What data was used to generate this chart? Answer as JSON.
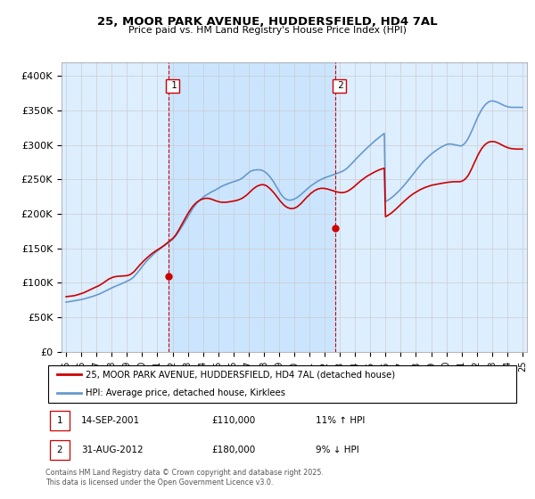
{
  "title": "25, MOOR PARK AVENUE, HUDDERSFIELD, HD4 7AL",
  "subtitle": "Price paid vs. HM Land Registry's House Price Index (HPI)",
  "ylim": [
    0,
    420000
  ],
  "yticks": [
    0,
    50000,
    100000,
    150000,
    200000,
    250000,
    300000,
    350000,
    400000
  ],
  "ytick_labels": [
    "£0",
    "£50K",
    "£100K",
    "£150K",
    "£200K",
    "£250K",
    "£300K",
    "£350K",
    "£400K"
  ],
  "annotation1": {
    "label": "1",
    "date": "14-SEP-2001",
    "price": "£110,000",
    "hpi": "11% ↑ HPI",
    "x_year": 2001.71
  },
  "annotation2": {
    "label": "2",
    "date": "31-AUG-2012",
    "price": "£180,000",
    "hpi": "9% ↓ HPI",
    "x_year": 2012.67
  },
  "legend_line1": "25, MOOR PARK AVENUE, HUDDERSFIELD, HD4 7AL (detached house)",
  "legend_line2": "HPI: Average price, detached house, Kirklees",
  "footer": "Contains HM Land Registry data © Crown copyright and database right 2025.\nThis data is licensed under the Open Government Licence v3.0.",
  "red_color": "#cc0000",
  "blue_color": "#6699cc",
  "background_color": "#ddeeff",
  "dot1_y": 110000,
  "dot2_y": 180000,
  "hpi_years": [
    1995.0,
    1995.08,
    1995.17,
    1995.25,
    1995.33,
    1995.42,
    1995.5,
    1995.58,
    1995.67,
    1995.75,
    1995.83,
    1995.92,
    1996.0,
    1996.08,
    1996.17,
    1996.25,
    1996.33,
    1996.42,
    1996.5,
    1996.58,
    1996.67,
    1996.75,
    1996.83,
    1996.92,
    1997.0,
    1997.08,
    1997.17,
    1997.25,
    1997.33,
    1997.42,
    1997.5,
    1997.58,
    1997.67,
    1997.75,
    1997.83,
    1997.92,
    1998.0,
    1998.08,
    1998.17,
    1998.25,
    1998.33,
    1998.42,
    1998.5,
    1998.58,
    1998.67,
    1998.75,
    1998.83,
    1998.92,
    1999.0,
    1999.08,
    1999.17,
    1999.25,
    1999.33,
    1999.42,
    1999.5,
    1999.58,
    1999.67,
    1999.75,
    1999.83,
    1999.92,
    2000.0,
    2000.08,
    2000.17,
    2000.25,
    2000.33,
    2000.42,
    2000.5,
    2000.58,
    2000.67,
    2000.75,
    2000.83,
    2000.92,
    2001.0,
    2001.08,
    2001.17,
    2001.25,
    2001.33,
    2001.42,
    2001.5,
    2001.58,
    2001.67,
    2001.75,
    2001.83,
    2001.92,
    2002.0,
    2002.08,
    2002.17,
    2002.25,
    2002.33,
    2002.42,
    2002.5,
    2002.58,
    2002.67,
    2002.75,
    2002.83,
    2002.92,
    2003.0,
    2003.08,
    2003.17,
    2003.25,
    2003.33,
    2003.42,
    2003.5,
    2003.58,
    2003.67,
    2003.75,
    2003.83,
    2003.92,
    2004.0,
    2004.08,
    2004.17,
    2004.25,
    2004.33,
    2004.42,
    2004.5,
    2004.58,
    2004.67,
    2004.75,
    2004.83,
    2004.92,
    2005.0,
    2005.08,
    2005.17,
    2005.25,
    2005.33,
    2005.42,
    2005.5,
    2005.58,
    2005.67,
    2005.75,
    2005.83,
    2005.92,
    2006.0,
    2006.08,
    2006.17,
    2006.25,
    2006.33,
    2006.42,
    2006.5,
    2006.58,
    2006.67,
    2006.75,
    2006.83,
    2006.92,
    2007.0,
    2007.08,
    2007.17,
    2007.25,
    2007.33,
    2007.42,
    2007.5,
    2007.58,
    2007.67,
    2007.75,
    2007.83,
    2007.92,
    2008.0,
    2008.08,
    2008.17,
    2008.25,
    2008.33,
    2008.42,
    2008.5,
    2008.58,
    2008.67,
    2008.75,
    2008.83,
    2008.92,
    2009.0,
    2009.08,
    2009.17,
    2009.25,
    2009.33,
    2009.42,
    2009.5,
    2009.58,
    2009.67,
    2009.75,
    2009.83,
    2009.92,
    2010.0,
    2010.08,
    2010.17,
    2010.25,
    2010.33,
    2010.42,
    2010.5,
    2010.58,
    2010.67,
    2010.75,
    2010.83,
    2010.92,
    2011.0,
    2011.08,
    2011.17,
    2011.25,
    2011.33,
    2011.42,
    2011.5,
    2011.58,
    2011.67,
    2011.75,
    2011.83,
    2011.92,
    2012.0,
    2012.08,
    2012.17,
    2012.25,
    2012.33,
    2012.42,
    2012.5,
    2012.58,
    2012.67,
    2012.75,
    2012.83,
    2012.92,
    2013.0,
    2013.08,
    2013.17,
    2013.25,
    2013.33,
    2013.42,
    2013.5,
    2013.58,
    2013.67,
    2013.75,
    2013.83,
    2013.92,
    2014.0,
    2014.08,
    2014.17,
    2014.25,
    2014.33,
    2014.42,
    2014.5,
    2014.58,
    2014.67,
    2014.75,
    2014.83,
    2014.92,
    2015.0,
    2015.08,
    2015.17,
    2015.25,
    2015.33,
    2015.42,
    2015.5,
    2015.58,
    2015.67,
    2015.75,
    2015.83,
    2015.92,
    2016.0,
    2016.08,
    2016.17,
    2016.25,
    2016.33,
    2016.42,
    2016.5,
    2016.58,
    2016.67,
    2016.75,
    2016.83,
    2016.92,
    2017.0,
    2017.08,
    2017.17,
    2017.25,
    2017.33,
    2017.42,
    2017.5,
    2017.58,
    2017.67,
    2017.75,
    2017.83,
    2017.92,
    2018.0,
    2018.08,
    2018.17,
    2018.25,
    2018.33,
    2018.42,
    2018.5,
    2018.58,
    2018.67,
    2018.75,
    2018.83,
    2018.92,
    2019.0,
    2019.08,
    2019.17,
    2019.25,
    2019.33,
    2019.42,
    2019.5,
    2019.58,
    2019.67,
    2019.75,
    2019.83,
    2019.92,
    2020.0,
    2020.08,
    2020.17,
    2020.25,
    2020.33,
    2020.42,
    2020.5,
    2020.58,
    2020.67,
    2020.75,
    2020.83,
    2020.92,
    2021.0,
    2021.08,
    2021.17,
    2021.25,
    2021.33,
    2021.42,
    2021.5,
    2021.58,
    2021.67,
    2021.75,
    2021.83,
    2021.92,
    2022.0,
    2022.08,
    2022.17,
    2022.25,
    2022.33,
    2022.42,
    2022.5,
    2022.58,
    2022.67,
    2022.75,
    2022.83,
    2022.92,
    2023.0,
    2023.08,
    2023.17,
    2023.25,
    2023.33,
    2023.42,
    2023.5,
    2023.58,
    2023.67,
    2023.75,
    2023.83,
    2023.92,
    2024.0,
    2024.08,
    2024.17,
    2024.25,
    2024.33,
    2024.42,
    2024.5,
    2024.58,
    2024.67,
    2024.75,
    2024.83,
    2024.92,
    2025.0
  ],
  "hpi_values": [
    72000,
    72300,
    72600,
    72900,
    73200,
    73500,
    73800,
    74100,
    74400,
    74700,
    75000,
    75400,
    75800,
    76200,
    76700,
    77200,
    77700,
    78200,
    78800,
    79300,
    79900,
    80400,
    81000,
    81600,
    82200,
    82900,
    83700,
    84500,
    85400,
    86300,
    87200,
    88100,
    89100,
    90000,
    90900,
    91800,
    92700,
    93500,
    94300,
    95100,
    95900,
    96700,
    97400,
    98200,
    99000,
    99800,
    100600,
    101400,
    102300,
    103200,
    104200,
    105200,
    106500,
    108000,
    110000,
    112000,
    114200,
    116500,
    118800,
    121200,
    123600,
    125900,
    128200,
    130500,
    132500,
    134500,
    136400,
    138200,
    140000,
    141700,
    143300,
    144900,
    146400,
    147900,
    149300,
    150700,
    152000,
    153300,
    154600,
    155900,
    157200,
    158600,
    160100,
    161700,
    163300,
    165100,
    167100,
    169500,
    172000,
    174800,
    177700,
    180500,
    183500,
    186500,
    189500,
    192600,
    195800,
    198900,
    202000,
    205000,
    208000,
    210700,
    213200,
    215400,
    217400,
    219200,
    220900,
    222500,
    224100,
    225700,
    226900,
    228100,
    229200,
    230300,
    231300,
    232300,
    233200,
    234000,
    235000,
    236100,
    237200,
    238300,
    239400,
    240400,
    241200,
    242000,
    242700,
    243400,
    244100,
    244800,
    245500,
    246100,
    246700,
    247300,
    247900,
    248500,
    249200,
    250000,
    251000,
    252200,
    253600,
    255200,
    256800,
    258400,
    260000,
    261300,
    262300,
    263000,
    263500,
    263800,
    264000,
    264100,
    264200,
    263900,
    263600,
    263000,
    262200,
    260900,
    259400,
    257700,
    255700,
    253500,
    251100,
    248500,
    245700,
    242700,
    239600,
    236400,
    233200,
    230200,
    227500,
    225200,
    223400,
    222000,
    221000,
    220400,
    220100,
    220100,
    220400,
    220900,
    221600,
    222500,
    223600,
    224900,
    226300,
    227800,
    229400,
    231100,
    232800,
    234500,
    236100,
    237700,
    239200,
    240600,
    242000,
    243300,
    244600,
    245800,
    246900,
    248000,
    249000,
    249900,
    250800,
    251600,
    252400,
    253200,
    253900,
    254600,
    255200,
    255700,
    256300,
    256900,
    257600,
    258300,
    259000,
    259700,
    260400,
    261200,
    262000,
    263000,
    264200,
    265500,
    267000,
    268700,
    270500,
    272400,
    274400,
    276400,
    278400,
    280400,
    282300,
    284200,
    286000,
    287800,
    289600,
    291400,
    293200,
    294900,
    296700,
    298400,
    300100,
    301800,
    303400,
    305100,
    306700,
    308300,
    309800,
    311300,
    312700,
    314100,
    315500,
    316800,
    218000,
    219000,
    220100,
    221300,
    222600,
    224000,
    225500,
    227100,
    228800,
    230500,
    232300,
    234100,
    236000,
    238000,
    240100,
    242300,
    244500,
    246700,
    249000,
    251300,
    253600,
    255900,
    258300,
    260600,
    263000,
    265300,
    267600,
    269900,
    272100,
    274200,
    276200,
    278200,
    280100,
    281900,
    283600,
    285200,
    286700,
    288200,
    289600,
    291000,
    292300,
    293600,
    294800,
    296000,
    297100,
    298100,
    299100,
    300000,
    300700,
    301200,
    301500,
    301600,
    301400,
    301100,
    300700,
    300300,
    299800,
    299400,
    299000,
    298700,
    299000,
    300000,
    301500,
    303500,
    306000,
    309000,
    312500,
    316300,
    320400,
    324600,
    328900,
    333200,
    337400,
    341400,
    345200,
    348700,
    351800,
    354600,
    357000,
    359100,
    360800,
    362200,
    363200,
    363800,
    364000,
    363900,
    363500,
    363000,
    362300,
    361500,
    360600,
    359700,
    358800,
    357900,
    357100,
    356400,
    355800,
    355300,
    355000,
    354800,
    354700,
    354700,
    354700,
    354700,
    354700,
    354700,
    354700,
    354700,
    354700
  ],
  "red_years": [
    1995.0,
    1995.08,
    1995.17,
    1995.25,
    1995.33,
    1995.42,
    1995.5,
    1995.58,
    1995.67,
    1995.75,
    1995.83,
    1995.92,
    1996.0,
    1996.08,
    1996.17,
    1996.25,
    1996.33,
    1996.42,
    1996.5,
    1996.58,
    1996.67,
    1996.75,
    1996.83,
    1996.92,
    1997.0,
    1997.08,
    1997.17,
    1997.25,
    1997.33,
    1997.42,
    1997.5,
    1997.58,
    1997.67,
    1997.75,
    1997.83,
    1997.92,
    1998.0,
    1998.08,
    1998.17,
    1998.25,
    1998.33,
    1998.42,
    1998.5,
    1998.58,
    1998.67,
    1998.75,
    1998.83,
    1998.92,
    1999.0,
    1999.08,
    1999.17,
    1999.25,
    1999.33,
    1999.42,
    1999.5,
    1999.58,
    1999.67,
    1999.75,
    1999.83,
    1999.92,
    2000.0,
    2000.08,
    2000.17,
    2000.25,
    2000.33,
    2000.42,
    2000.5,
    2000.58,
    2000.67,
    2000.75,
    2000.83,
    2000.92,
    2001.0,
    2001.08,
    2001.17,
    2001.25,
    2001.33,
    2001.42,
    2001.5,
    2001.58,
    2001.67,
    2001.75,
    2001.83,
    2001.92,
    2002.0,
    2002.08,
    2002.17,
    2002.25,
    2002.33,
    2002.42,
    2002.5,
    2002.58,
    2002.67,
    2002.75,
    2002.83,
    2002.92,
    2003.0,
    2003.08,
    2003.17,
    2003.25,
    2003.33,
    2003.42,
    2003.5,
    2003.58,
    2003.67,
    2003.75,
    2003.83,
    2003.92,
    2004.0,
    2004.08,
    2004.17,
    2004.25,
    2004.33,
    2004.42,
    2004.5,
    2004.58,
    2004.67,
    2004.75,
    2004.83,
    2004.92,
    2005.0,
    2005.08,
    2005.17,
    2005.25,
    2005.33,
    2005.42,
    2005.5,
    2005.58,
    2005.67,
    2005.75,
    2005.83,
    2005.92,
    2006.0,
    2006.08,
    2006.17,
    2006.25,
    2006.33,
    2006.42,
    2006.5,
    2006.58,
    2006.67,
    2006.75,
    2006.83,
    2006.92,
    2007.0,
    2007.08,
    2007.17,
    2007.25,
    2007.33,
    2007.42,
    2007.5,
    2007.58,
    2007.67,
    2007.75,
    2007.83,
    2007.92,
    2008.0,
    2008.08,
    2008.17,
    2008.25,
    2008.33,
    2008.42,
    2008.5,
    2008.58,
    2008.67,
    2008.75,
    2008.83,
    2008.92,
    2009.0,
    2009.08,
    2009.17,
    2009.25,
    2009.33,
    2009.42,
    2009.5,
    2009.58,
    2009.67,
    2009.75,
    2009.83,
    2009.92,
    2010.0,
    2010.08,
    2010.17,
    2010.25,
    2010.33,
    2010.42,
    2010.5,
    2010.58,
    2010.67,
    2010.75,
    2010.83,
    2010.92,
    2011.0,
    2011.08,
    2011.17,
    2011.25,
    2011.33,
    2011.42,
    2011.5,
    2011.58,
    2011.67,
    2011.75,
    2011.83,
    2011.92,
    2012.0,
    2012.08,
    2012.17,
    2012.25,
    2012.33,
    2012.42,
    2012.5,
    2012.58,
    2012.67,
    2012.75,
    2012.83,
    2012.92,
    2013.0,
    2013.08,
    2013.17,
    2013.25,
    2013.33,
    2013.42,
    2013.5,
    2013.58,
    2013.67,
    2013.75,
    2013.83,
    2013.92,
    2014.0,
    2014.08,
    2014.17,
    2014.25,
    2014.33,
    2014.42,
    2014.5,
    2014.58,
    2014.67,
    2014.75,
    2014.83,
    2014.92,
    2015.0,
    2015.08,
    2015.17,
    2015.25,
    2015.33,
    2015.42,
    2015.5,
    2015.58,
    2015.67,
    2015.75,
    2015.83,
    2015.92,
    2016.0,
    2016.08,
    2016.17,
    2016.25,
    2016.33,
    2016.42,
    2016.5,
    2016.58,
    2016.67,
    2016.75,
    2016.83,
    2016.92,
    2017.0,
    2017.08,
    2017.17,
    2017.25,
    2017.33,
    2017.42,
    2017.5,
    2017.58,
    2017.67,
    2017.75,
    2017.83,
    2017.92,
    2018.0,
    2018.08,
    2018.17,
    2018.25,
    2018.33,
    2018.42,
    2018.5,
    2018.58,
    2018.67,
    2018.75,
    2018.83,
    2018.92,
    2019.0,
    2019.08,
    2019.17,
    2019.25,
    2019.33,
    2019.42,
    2019.5,
    2019.58,
    2019.67,
    2019.75,
    2019.83,
    2019.92,
    2020.0,
    2020.08,
    2020.17,
    2020.25,
    2020.33,
    2020.42,
    2020.5,
    2020.58,
    2020.67,
    2020.75,
    2020.83,
    2020.92,
    2021.0,
    2021.08,
    2021.17,
    2021.25,
    2021.33,
    2021.42,
    2021.5,
    2021.58,
    2021.67,
    2021.75,
    2021.83,
    2021.92,
    2022.0,
    2022.08,
    2022.17,
    2022.25,
    2022.33,
    2022.42,
    2022.5,
    2022.58,
    2022.67,
    2022.75,
    2022.83,
    2022.92,
    2023.0,
    2023.08,
    2023.17,
    2023.25,
    2023.33,
    2023.42,
    2023.5,
    2023.58,
    2023.67,
    2023.75,
    2023.83,
    2023.92,
    2024.0,
    2024.08,
    2024.17,
    2024.25,
    2024.33,
    2024.42,
    2024.5,
    2024.58,
    2024.67,
    2024.75,
    2024.83,
    2024.92,
    2025.0
  ],
  "red_values": [
    80000,
    80200,
    80400,
    80600,
    80800,
    81000,
    81300,
    81700,
    82200,
    82800,
    83300,
    83900,
    84500,
    85100,
    85800,
    86600,
    87400,
    88300,
    89200,
    90100,
    91000,
    91900,
    92700,
    93500,
    94300,
    95200,
    96100,
    97200,
    98400,
    99600,
    100900,
    102200,
    103500,
    104700,
    105800,
    106700,
    107500,
    108200,
    108700,
    109100,
    109400,
    109600,
    109700,
    109800,
    109900,
    110000,
    110100,
    110300,
    110600,
    111000,
    111700,
    112600,
    113900,
    115400,
    117100,
    119100,
    121300,
    123500,
    125600,
    127600,
    129500,
    131400,
    133200,
    134900,
    136600,
    138200,
    139800,
    141400,
    142900,
    144300,
    145500,
    146700,
    147800,
    149000,
    150200,
    151400,
    152700,
    154000,
    155400,
    156900,
    158400,
    159900,
    161300,
    162800,
    164300,
    166200,
    168400,
    171000,
    173900,
    177000,
    180300,
    183700,
    187100,
    190400,
    193700,
    197000,
    200200,
    203200,
    206100,
    208800,
    211200,
    213300,
    215200,
    216800,
    218200,
    219400,
    220400,
    221200,
    221900,
    222400,
    222700,
    222800,
    222700,
    222400,
    221900,
    221300,
    220600,
    219900,
    219200,
    218600,
    218000,
    217500,
    217200,
    217000,
    216900,
    216900,
    217000,
    217200,
    217400,
    217700,
    218000,
    218300,
    218600,
    219000,
    219400,
    219900,
    220500,
    221200,
    222000,
    223000,
    224100,
    225400,
    226800,
    228400,
    230100,
    231900,
    233600,
    235300,
    236900,
    238300,
    239500,
    240600,
    241400,
    242000,
    242400,
    242500,
    242300,
    241800,
    240900,
    239700,
    238200,
    236500,
    234700,
    232700,
    230500,
    228200,
    225800,
    223400,
    221000,
    218700,
    216500,
    214500,
    212700,
    211200,
    210000,
    209100,
    208400,
    208000,
    207900,
    208000,
    208400,
    209100,
    210100,
    211400,
    212900,
    214600,
    216500,
    218500,
    220500,
    222500,
    224400,
    226200,
    228000,
    229700,
    231200,
    232600,
    233800,
    234800,
    235700,
    236400,
    236900,
    237200,
    237300,
    237200,
    237000,
    236700,
    236300,
    235800,
    235300,
    234700,
    234100,
    233500,
    232900,
    232400,
    231900,
    231500,
    231200,
    231000,
    231000,
    231200,
    231600,
    232200,
    233000,
    234000,
    235200,
    236500,
    237900,
    239400,
    241000,
    242600,
    244200,
    245800,
    247400,
    248900,
    250300,
    251700,
    253000,
    254200,
    255400,
    256500,
    257600,
    258600,
    259600,
    260600,
    261500,
    262400,
    263200,
    264000,
    264700,
    265300,
    265900,
    266400,
    196000,
    197000,
    198100,
    199300,
    200600,
    202000,
    203500,
    205100,
    206800,
    208500,
    210200,
    212000,
    213700,
    215500,
    217200,
    218900,
    220600,
    222200,
    223800,
    225300,
    226700,
    228100,
    229400,
    230600,
    231800,
    232900,
    233900,
    234900,
    235800,
    236700,
    237500,
    238300,
    239000,
    239700,
    240300,
    240900,
    241400,
    241900,
    242300,
    242700,
    243100,
    243500,
    243800,
    244100,
    244400,
    244700,
    245000,
    245300,
    245600,
    245900,
    246200,
    246400,
    246600,
    246700,
    246800,
    246800,
    246800,
    246800,
    246800,
    247000,
    247500,
    248300,
    249500,
    251000,
    253000,
    255500,
    258500,
    262000,
    265900,
    269900,
    273900,
    278000,
    282000,
    285700,
    289200,
    292300,
    295100,
    297600,
    299700,
    301400,
    302800,
    303900,
    304600,
    305000,
    305200,
    305100,
    304800,
    304300,
    303600,
    302800,
    301900,
    300900,
    299900,
    298900,
    298000,
    297200,
    296500,
    295900,
    295400,
    295000,
    294700,
    294500,
    294300,
    294200,
    294200,
    294200,
    294200,
    294200,
    294200
  ],
  "xlim_min": 1994.7,
  "xlim_max": 2025.3,
  "xticks": [
    1995,
    1996,
    1997,
    1998,
    1999,
    2000,
    2001,
    2002,
    2003,
    2004,
    2005,
    2006,
    2007,
    2008,
    2009,
    2010,
    2011,
    2012,
    2013,
    2014,
    2015,
    2016,
    2017,
    2018,
    2019,
    2020,
    2021,
    2022,
    2023,
    2024,
    2025
  ]
}
